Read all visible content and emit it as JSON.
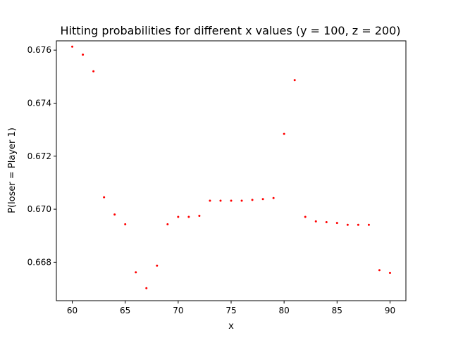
{
  "chart_data": {
    "type": "scatter",
    "title": "Hitting probabilities for different x values (y = 100, z = 200)",
    "xlabel": "x",
    "ylabel": "P(loser = Player 1)",
    "xlim": [
      58.5,
      91.5
    ],
    "ylim": [
      0.66655,
      0.67635
    ],
    "xticks": [
      60,
      65,
      70,
      75,
      80,
      85,
      90
    ],
    "yticks": [
      0.668,
      0.67,
      0.672,
      0.674,
      0.676
    ],
    "ytick_labels": [
      "0.668",
      "0.670",
      "0.672",
      "0.674",
      "0.676"
    ],
    "marker_color": "#ff0000",
    "grid": false,
    "points": [
      [
        60,
        0.67613
      ],
      [
        61,
        0.67583
      ],
      [
        62,
        0.6752
      ],
      [
        63,
        0.67045
      ],
      [
        64,
        0.6698
      ],
      [
        65,
        0.66943
      ],
      [
        66,
        0.66762
      ],
      [
        67,
        0.66702
      ],
      [
        68,
        0.66787
      ],
      [
        69,
        0.66943
      ],
      [
        70,
        0.66971
      ],
      [
        71,
        0.66971
      ],
      [
        72,
        0.66975
      ],
      [
        73,
        0.67032
      ],
      [
        74,
        0.67032
      ],
      [
        75,
        0.67032
      ],
      [
        76,
        0.67032
      ],
      [
        77,
        0.67035
      ],
      [
        78,
        0.67038
      ],
      [
        79,
        0.67042
      ],
      [
        80,
        0.67284
      ],
      [
        81,
        0.67487
      ],
      [
        82,
        0.66971
      ],
      [
        83,
        0.66954
      ],
      [
        84,
        0.66951
      ],
      [
        85,
        0.66948
      ],
      [
        86,
        0.66941
      ],
      [
        87,
        0.66941
      ],
      [
        88,
        0.66941
      ],
      [
        89,
        0.6677
      ],
      [
        90,
        0.6676
      ]
    ]
  }
}
